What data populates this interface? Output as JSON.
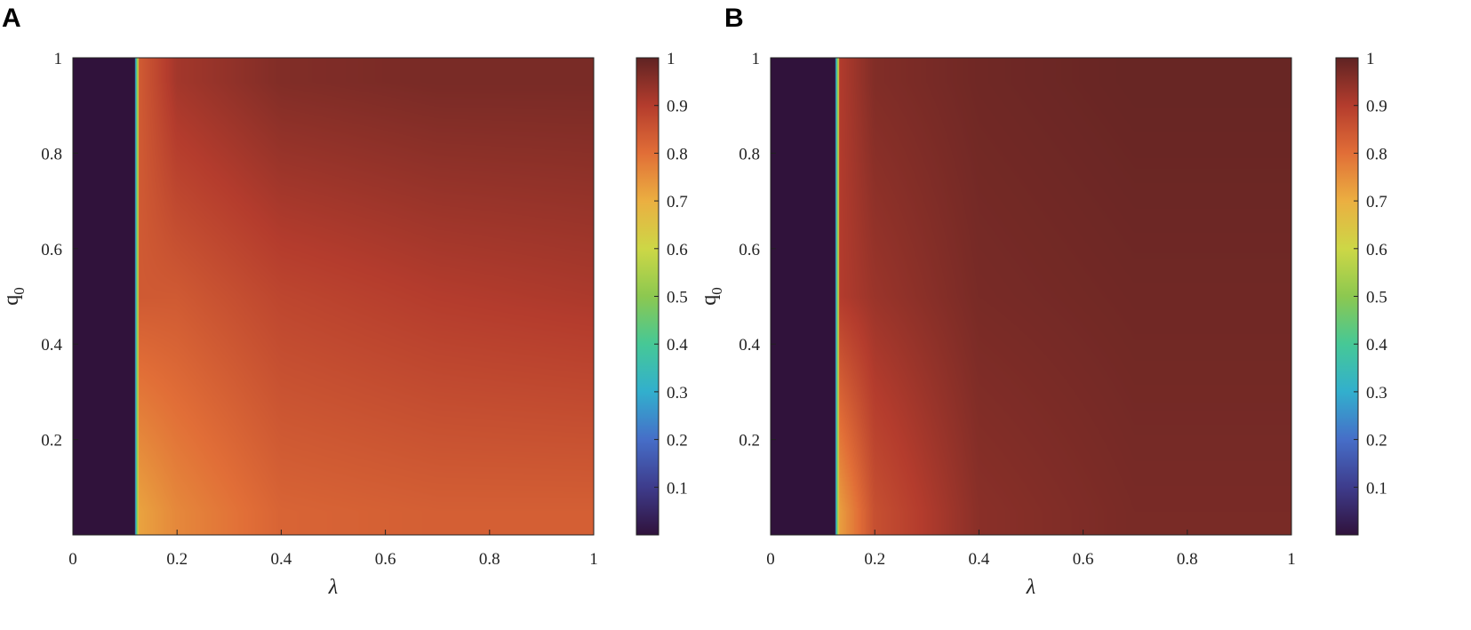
{
  "chart_data": [
    {
      "type": "heatmap",
      "panel_label": "A",
      "xlabel": "λ",
      "ylabel": {
        "base": "q",
        "subscript": "0"
      },
      "xlim": [
        0,
        1
      ],
      "ylim": [
        0,
        1
      ],
      "xticks": [
        0,
        0.2,
        0.4,
        0.6,
        0.8,
        1
      ],
      "xtick_labels": [
        "0",
        "0.2",
        "0.4",
        "0.6",
        "0.8",
        "1"
      ],
      "yticks": [
        0.2,
        0.4,
        0.6,
        0.8,
        1
      ],
      "ytick_labels": [
        "0.2",
        "0.4",
        "0.6",
        "0.8",
        "1"
      ],
      "colorbar": {
        "range": [
          0,
          1
        ],
        "ticks": [
          0.1,
          0.2,
          0.3,
          0.4,
          0.5,
          0.6,
          0.7,
          0.8,
          0.9,
          1
        ],
        "tick_labels": [
          "0.1",
          "0.2",
          "0.3",
          "0.4",
          "0.5",
          "0.6",
          "0.7",
          "0.8",
          "0.9",
          "1"
        ],
        "colormap": "turbo-like"
      },
      "threshold_lambda": 0.12,
      "value_below_threshold": 0.0,
      "value_samples": [
        {
          "lambda": 0.13,
          "q0": 0.05,
          "value": 0.72
        },
        {
          "lambda": 0.13,
          "q0": 0.95,
          "value": 0.84
        },
        {
          "lambda": 0.2,
          "q0": 0.05,
          "value": 0.76
        },
        {
          "lambda": 0.2,
          "q0": 0.5,
          "value": 0.84
        },
        {
          "lambda": 0.2,
          "q0": 0.95,
          "value": 0.92
        },
        {
          "lambda": 0.4,
          "q0": 0.05,
          "value": 0.82
        },
        {
          "lambda": 0.4,
          "q0": 0.5,
          "value": 0.88
        },
        {
          "lambda": 0.4,
          "q0": 0.95,
          "value": 0.96
        },
        {
          "lambda": 0.7,
          "q0": 0.05,
          "value": 0.83
        },
        {
          "lambda": 0.7,
          "q0": 0.5,
          "value": 0.9
        },
        {
          "lambda": 0.7,
          "q0": 0.95,
          "value": 0.97
        },
        {
          "lambda": 1.0,
          "q0": 0.05,
          "value": 0.83
        },
        {
          "lambda": 1.0,
          "q0": 0.5,
          "value": 0.91
        },
        {
          "lambda": 1.0,
          "q0": 0.95,
          "value": 0.97
        }
      ]
    },
    {
      "type": "heatmap",
      "panel_label": "B",
      "xlabel": "λ",
      "ylabel": {
        "base": "q",
        "subscript": "0"
      },
      "xlim": [
        0,
        1
      ],
      "ylim": [
        0,
        1
      ],
      "xticks": [
        0,
        0.2,
        0.4,
        0.6,
        0.8,
        1
      ],
      "xtick_labels": [
        "0",
        "0.2",
        "0.4",
        "0.6",
        "0.8",
        "1"
      ],
      "yticks": [
        0.2,
        0.4,
        0.6,
        0.8,
        1
      ],
      "ytick_labels": [
        "0.2",
        "0.4",
        "0.6",
        "0.8",
        "1"
      ],
      "colorbar": {
        "range": [
          0,
          1
        ],
        "ticks": [
          0.1,
          0.2,
          0.3,
          0.4,
          0.5,
          0.6,
          0.7,
          0.8,
          0.9,
          1
        ],
        "tick_labels": [
          "0.1",
          "0.2",
          "0.3",
          "0.4",
          "0.5",
          "0.6",
          "0.7",
          "0.8",
          "0.9",
          "1"
        ],
        "colormap": "turbo-like"
      },
      "threshold_lambda": 0.125,
      "value_below_threshold": 0.0,
      "value_samples": [
        {
          "lambda": 0.13,
          "q0": 0.05,
          "value": 0.72
        },
        {
          "lambda": 0.13,
          "q0": 0.95,
          "value": 0.9
        },
        {
          "lambda": 0.2,
          "q0": 0.05,
          "value": 0.86
        },
        {
          "lambda": 0.2,
          "q0": 0.5,
          "value": 0.93
        },
        {
          "lambda": 0.2,
          "q0": 0.95,
          "value": 0.96
        },
        {
          "lambda": 0.4,
          "q0": 0.05,
          "value": 0.95
        },
        {
          "lambda": 0.4,
          "q0": 0.5,
          "value": 0.97
        },
        {
          "lambda": 0.4,
          "q0": 0.95,
          "value": 0.98
        },
        {
          "lambda": 0.7,
          "q0": 0.05,
          "value": 0.97
        },
        {
          "lambda": 0.7,
          "q0": 0.5,
          "value": 0.98
        },
        {
          "lambda": 0.7,
          "q0": 0.95,
          "value": 0.99
        },
        {
          "lambda": 1.0,
          "q0": 0.05,
          "value": 0.97
        },
        {
          "lambda": 1.0,
          "q0": 0.5,
          "value": 0.98
        },
        {
          "lambda": 1.0,
          "q0": 0.95,
          "value": 0.99
        }
      ]
    }
  ]
}
